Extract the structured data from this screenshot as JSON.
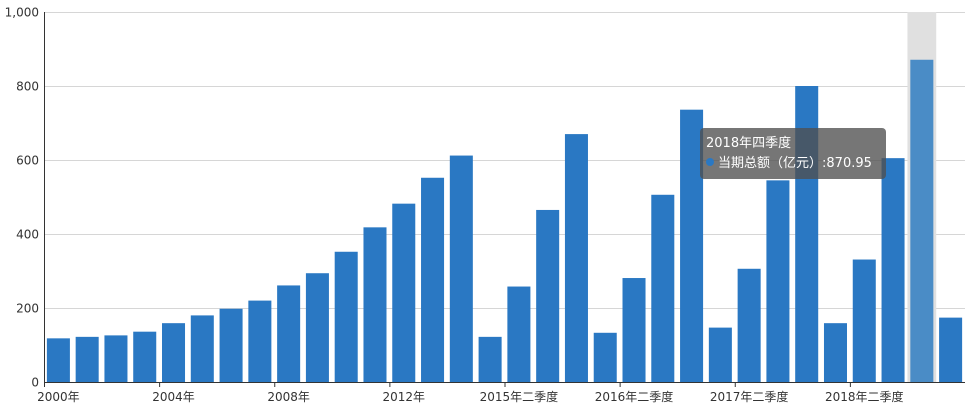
{
  "chart_data": {
    "type": "bar",
    "categories": [
      "2000年",
      "2001年",
      "2002年",
      "2003年",
      "2004年",
      "2005年",
      "2006年",
      "2007年",
      "2008年",
      "2009年",
      "2010年",
      "2011年",
      "2012年",
      "2013年",
      "2014年",
      "2015年一季度",
      "2015年二季度",
      "2015年三季度",
      "2015年四季度",
      "2016年一季度",
      "2016年二季度",
      "2016年三季度",
      "2016年四季度",
      "2017年一季度",
      "2017年二季度",
      "2017年三季度",
      "2017年四季度",
      "2018年一季度",
      "2018年二季度",
      "2018年三季度",
      "2018年四季度",
      "2019年一季度"
    ],
    "series": [
      {
        "name": "当期总额（亿元）",
        "values": [
          118,
          122,
          126,
          136,
          159,
          180,
          198,
          220,
          261,
          294,
          352,
          418,
          482,
          552,
          612,
          122,
          258,
          465,
          670,
          133,
          281,
          506,
          736,
          147,
          306,
          545,
          800,
          159,
          331,
          605,
          870.95,
          174
        ]
      }
    ],
    "x_tick_labels": [
      "2000年",
      "2004年",
      "2008年",
      "2012年",
      "2015年二季度",
      "2016年二季度",
      "2017年二季度",
      "2018年二季度"
    ],
    "y_tick_labels": [
      "0",
      "200",
      "400",
      "600",
      "800",
      "1,000"
    ],
    "ylim": [
      0,
      1000
    ],
    "grid": true,
    "colors": {
      "bar": "#2a78c3",
      "bar_highlight": "#4a8cc6",
      "hover_band": "#e0e0e0",
      "grid": "#d6d6d6"
    },
    "highlight_index": 30
  },
  "tooltip": {
    "title": "2018年四季度",
    "series_label": "当期总额（亿元）",
    "separator": ":",
    "value": "870.95",
    "marker_color": "#2a78c3"
  }
}
